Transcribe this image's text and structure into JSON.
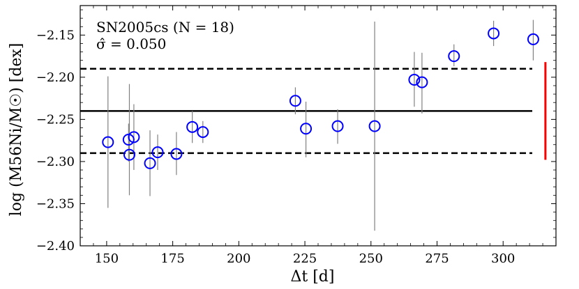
{
  "chart_data": {
    "type": "scatter",
    "title": "",
    "xlabel": "Δt [d]",
    "ylabel": "log (M56Ni/M☉) [dex]",
    "xlim": [
      140,
      320
    ],
    "ylim": [
      -2.4,
      -2.115
    ],
    "x_ticks": [
      150,
      175,
      200,
      225,
      250,
      275,
      300
    ],
    "y_ticks": [
      -2.4,
      -2.35,
      -2.3,
      -2.25,
      -2.2,
      -2.15
    ],
    "x_tick_labels": [
      "150",
      "175",
      "200",
      "225",
      "250",
      "275",
      "300"
    ],
    "y_tick_labels": [
      "−2.40",
      "−2.35",
      "−2.30",
      "−2.25",
      "−2.20",
      "−2.15"
    ],
    "annotations": [
      "SN2005cs (N = 18)",
      "σ̂ = 0.050"
    ],
    "colors": {
      "points": "#0000ff",
      "errorbars": "#808080",
      "lines": "#000000",
      "sigma_bar": "#ff0000"
    },
    "mean_line": -2.24,
    "sigma_band": [
      -2.29,
      -2.19
    ],
    "sigma_bar": {
      "x": 316,
      "y_range": [
        -2.298,
        -2.182
      ]
    },
    "points": [
      {
        "x": 150.5,
        "y": -2.277,
        "err_lo": -2.355,
        "err_hi": -2.199
      },
      {
        "x": 158.3,
        "y": -2.274,
        "err_lo": -2.3,
        "err_hi": -2.255
      },
      {
        "x": 158.6,
        "y": -2.292,
        "err_lo": -2.34,
        "err_hi": -2.208
      },
      {
        "x": 160.3,
        "y": -2.271,
        "err_lo": -2.31,
        "err_hi": -2.232
      },
      {
        "x": 166.4,
        "y": -2.302,
        "err_lo": -2.341,
        "err_hi": -2.263
      },
      {
        "x": 169.3,
        "y": -2.289,
        "err_lo": -2.31,
        "err_hi": -2.268
      },
      {
        "x": 176.4,
        "y": -2.291,
        "err_lo": -2.316,
        "err_hi": -2.265
      },
      {
        "x": 182.4,
        "y": -2.259,
        "err_lo": -2.278,
        "err_hi": -2.24
      },
      {
        "x": 186.4,
        "y": -2.265,
        "err_lo": -2.278,
        "err_hi": -2.252
      },
      {
        "x": 221.4,
        "y": -2.228,
        "err_lo": -2.244,
        "err_hi": -2.212
      },
      {
        "x": 225.4,
        "y": -2.261,
        "err_lo": -2.295,
        "err_hi": -2.229
      },
      {
        "x": 237.4,
        "y": -2.258,
        "err_lo": -2.279,
        "err_hi": -2.238
      },
      {
        "x": 251.4,
        "y": -2.258,
        "err_lo": -2.382,
        "err_hi": -2.134
      },
      {
        "x": 266.4,
        "y": -2.203,
        "err_lo": -2.235,
        "err_hi": -2.17
      },
      {
        "x": 269.3,
        "y": -2.206,
        "err_lo": -2.243,
        "err_hi": -2.171
      },
      {
        "x": 281.4,
        "y": -2.175,
        "err_lo": -2.187,
        "err_hi": -2.161
      },
      {
        "x": 296.4,
        "y": -2.148,
        "err_lo": -2.163,
        "err_hi": -2.133
      },
      {
        "x": 311.4,
        "y": -2.155,
        "err_lo": -2.18,
        "err_hi": -2.132
      }
    ]
  }
}
